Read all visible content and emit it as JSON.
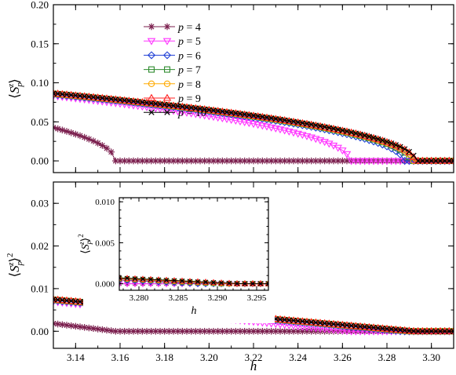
{
  "chart_data": [
    {
      "type": "line",
      "panel": "top",
      "ylabel": "⟨S_p^z⟩",
      "xlim": [
        3.13,
        3.31
      ],
      "ylim": [
        -0.015,
        0.2
      ],
      "xticks": [
        3.14,
        3.16,
        3.18,
        3.2,
        3.22,
        3.24,
        3.26,
        3.28,
        3.3
      ],
      "yticks": [
        0.0,
        0.05,
        0.1,
        0.15,
        0.2
      ],
      "ytick_labels": [
        "0.00",
        "0.05",
        "0.10",
        "0.15",
        "0.20"
      ],
      "legend": "top-center",
      "series": [
        {
          "name": "p = 4",
          "label": "4",
          "color": "#7b1f4e",
          "marker": "asterisk",
          "hc": 3.158,
          "slope": 6.5
        },
        {
          "name": "p = 5",
          "label": "5",
          "color": "#ff33ff",
          "marker": "triangle-down",
          "hc": 3.2635,
          "slope": 5.2
        },
        {
          "name": "p = 6",
          "label": "6",
          "color": "#1f3fd6",
          "marker": "diamond",
          "hc": 3.2875,
          "slope": 4.6
        },
        {
          "name": "p = 7",
          "label": "7",
          "color": "#2e8b2e",
          "marker": "square",
          "hc": 3.2905,
          "slope": 4.6
        },
        {
          "name": "p = 8",
          "label": "8",
          "color": "#ffaa00",
          "marker": "circle",
          "hc": 3.2915,
          "slope": 4.6
        },
        {
          "name": "p = 9",
          "label": "9",
          "color": "#ff2222",
          "marker": "triangle-up",
          "hc": 3.2925,
          "slope": 4.6
        },
        {
          "name": "p = 10",
          "label": "10",
          "color": "#000000",
          "marker": "cross",
          "hc": 3.293,
          "slope": 4.6
        }
      ]
    },
    {
      "type": "line",
      "panel": "bottom",
      "xlabel": "h",
      "ylabel": "⟨S_p^z⟩²",
      "xlim": [
        3.13,
        3.31
      ],
      "ylim": [
        -0.004,
        0.035
      ],
      "xticks": [
        3.14,
        3.16,
        3.18,
        3.2,
        3.22,
        3.24,
        3.26,
        3.28,
        3.3
      ],
      "xtick_labels": [
        "3.14",
        "3.16",
        "3.18",
        "3.20",
        "3.22",
        "3.24",
        "3.26",
        "3.28",
        "3.30"
      ],
      "yticks": [
        0.0,
        0.01,
        0.02,
        0.03
      ],
      "ytick_labels": [
        "0.00",
        "0.01",
        "0.02",
        "0.03"
      ]
    },
    {
      "type": "line",
      "panel": "inset",
      "xlabel": "h",
      "ylabel": "⟨S_p^z⟩²",
      "xlim": [
        3.2775,
        3.2965
      ],
      "ylim": [
        -0.0008,
        0.0105
      ],
      "xticks": [
        3.28,
        3.285,
        3.29,
        3.295
      ],
      "xtick_labels": [
        "3.280",
        "3.285",
        "3.290",
        "3.295"
      ],
      "yticks": [
        0.0,
        0.005,
        0.01
      ],
      "ytick_labels": [
        "0.000",
        "0.005",
        "0.010"
      ]
    }
  ],
  "legend": {
    "prefix": "p",
    "eq": " = "
  }
}
